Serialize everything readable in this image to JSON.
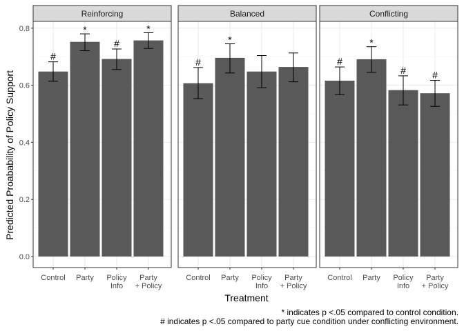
{
  "chart_data": {
    "type": "bar",
    "xlabel": "Treatment",
    "ylabel": "Predicted Proabability of Policy Support",
    "ylim": [
      0,
      0.8
    ],
    "yticks": [
      "0.0",
      "0.2",
      "0.4",
      "0.6",
      "0.8"
    ],
    "ytick_values": [
      0,
      0.2,
      0.4,
      0.6,
      0.8
    ],
    "categories": [
      [
        "Control"
      ],
      [
        "Party"
      ],
      [
        "Policy",
        "Info"
      ],
      [
        "Party",
        "+ Policy"
      ]
    ],
    "bar_color": "#595959",
    "strip_color": "#d9d9d9",
    "grid": true,
    "panels": [
      {
        "title": "Reinforcing",
        "values": [
          0.648,
          0.752,
          0.692,
          0.757
        ],
        "lower": [
          0.614,
          0.721,
          0.655,
          0.729
        ],
        "upper": [
          0.682,
          0.78,
          0.727,
          0.784
        ],
        "marks": [
          "#",
          "*",
          "#",
          "*"
        ]
      },
      {
        "title": "Balanced",
        "values": [
          0.607,
          0.696,
          0.648,
          0.664
        ],
        "lower": [
          0.553,
          0.643,
          0.591,
          0.612
        ],
        "upper": [
          0.662,
          0.745,
          0.704,
          0.713
        ],
        "marks": [
          "#",
          "*",
          "",
          ""
        ]
      },
      {
        "title": "Conflicting",
        "values": [
          0.616,
          0.691,
          0.583,
          0.572
        ],
        "lower": [
          0.567,
          0.645,
          0.531,
          0.526
        ],
        "upper": [
          0.664,
          0.735,
          0.633,
          0.617
        ],
        "marks": [
          "#",
          "*",
          "#",
          "#"
        ]
      }
    ],
    "notes": [
      "* indicates p <.05 compared to control condition.",
      "# indicates p <.05 compared to party cue condition under conflicting environment."
    ]
  }
}
